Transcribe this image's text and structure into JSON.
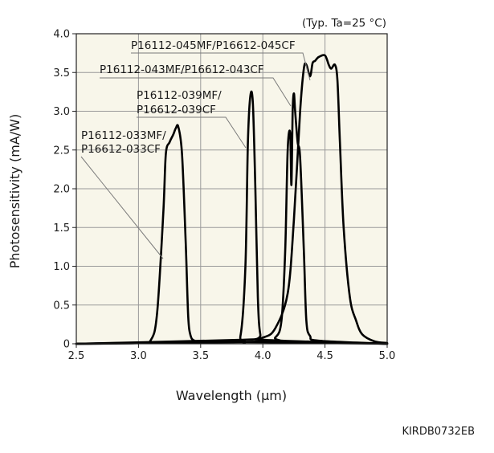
{
  "chart_data": {
    "type": "line",
    "title": "",
    "condition": "(Typ. Ta=25 °C)",
    "xlabel": "Wavelength (μm)",
    "ylabel": "Photosensitivity (mA/W)",
    "xlim": [
      2.5,
      5.0
    ],
    "ylim": [
      0,
      4.0
    ],
    "xticks": [
      "2.5",
      "3.0",
      "3.5",
      "4.0",
      "4.5",
      "5.0"
    ],
    "yticks": [
      "0",
      "0.5",
      "1.0",
      "1.5",
      "2.0",
      "2.5",
      "3.0",
      "3.5",
      "4.0"
    ],
    "grid": true,
    "plot_background": "#f8f6ea",
    "series": [
      {
        "name": "P16112-033MF/ P16612-033CF",
        "x": [
          2.5,
          3.0,
          3.1,
          3.15,
          3.2,
          3.22,
          3.25,
          3.28,
          3.3,
          3.32,
          3.35,
          3.38,
          3.4,
          3.42,
          3.45,
          3.5,
          4.0,
          5.0
        ],
        "y": [
          0.0,
          0.01,
          0.05,
          0.4,
          1.7,
          2.45,
          2.6,
          2.7,
          2.78,
          2.8,
          2.45,
          1.3,
          0.35,
          0.1,
          0.04,
          0.02,
          0.02,
          0.0
        ]
      },
      {
        "name": "P16112-039MF/ P16612-039CF",
        "x": [
          2.5,
          3.75,
          3.82,
          3.86,
          3.88,
          3.9,
          3.92,
          3.94,
          3.96,
          3.98,
          4.02,
          5.0
        ],
        "y": [
          0.0,
          0.04,
          0.1,
          1.0,
          2.6,
          3.2,
          3.1,
          2.0,
          0.6,
          0.12,
          0.05,
          0.0
        ]
      },
      {
        "name": "P16112-043MF/ P16612-043CF",
        "x": [
          2.5,
          4.0,
          4.1,
          4.15,
          4.18,
          4.2,
          4.22,
          4.23,
          4.24,
          4.25,
          4.26,
          4.28,
          4.3,
          4.33,
          4.35,
          4.38,
          4.45,
          5.0
        ],
        "y": [
          0.0,
          0.03,
          0.08,
          0.3,
          1.2,
          2.5,
          2.72,
          2.05,
          3.0,
          3.23,
          3.0,
          2.6,
          2.4,
          1.2,
          0.3,
          0.1,
          0.04,
          0.0
        ]
      },
      {
        "name": "P16112-045MF/ P16612-045CF",
        "x": [
          2.5,
          3.8,
          4.0,
          4.1,
          4.2,
          4.25,
          4.3,
          4.33,
          4.35,
          4.38,
          4.4,
          4.42,
          4.45,
          4.5,
          4.53,
          4.55,
          4.58,
          4.6,
          4.62,
          4.65,
          4.7,
          4.75,
          4.8,
          4.9,
          5.0
        ],
        "y": [
          0.0,
          0.05,
          0.08,
          0.2,
          0.65,
          1.6,
          3.0,
          3.55,
          3.6,
          3.45,
          3.62,
          3.65,
          3.7,
          3.72,
          3.6,
          3.55,
          3.6,
          3.4,
          2.6,
          1.5,
          0.6,
          0.3,
          0.12,
          0.03,
          0.01
        ]
      }
    ],
    "annotations": [
      {
        "text": "P16112-045MF/P16612-045CF",
        "series": 3
      },
      {
        "text": "P16112-043MF/P16612-043CF",
        "series": 2
      },
      {
        "text": "P16112-039MF/",
        "series": 1
      },
      {
        "text": "P16612-039CF",
        "series": 1
      },
      {
        "text": "P16112-033MF/",
        "series": 0
      },
      {
        "text": "P16612-033CF",
        "series": 0
      }
    ]
  },
  "document_id": "KIRDB0732EB"
}
